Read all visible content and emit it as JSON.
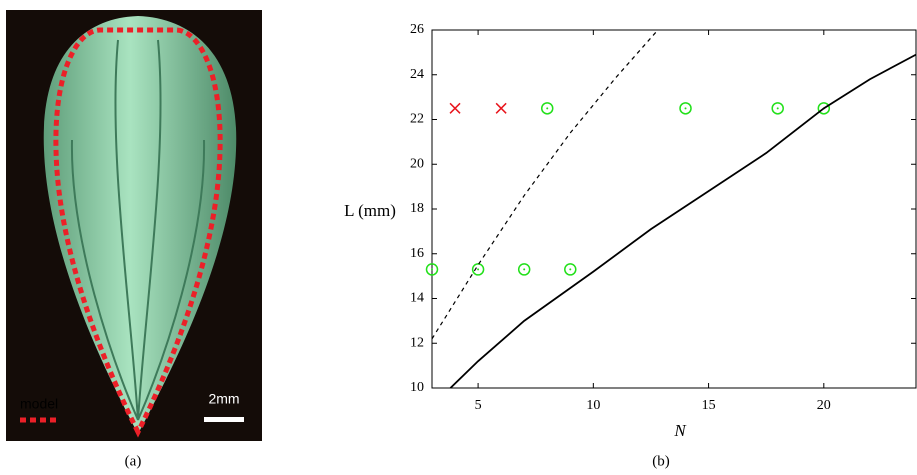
{
  "panel_a": {
    "legend_label": "model",
    "scale_label": "2mm",
    "caption": "(a)"
  },
  "chart_data": {
    "type": "scatter",
    "caption": "(b)",
    "xlabel": "N",
    "ylabel": "L (mm)",
    "xlim": [
      3,
      24
    ],
    "ylim": [
      10,
      26
    ],
    "xticks": [
      5,
      10,
      15,
      20
    ],
    "yticks": [
      10,
      12,
      14,
      16,
      18,
      20,
      22,
      24,
      26
    ],
    "series": [
      {
        "marker": "x",
        "color": "#e8141c",
        "x": [
          4,
          6
        ],
        "values": [
          22.5,
          22.5
        ]
      },
      {
        "marker": "circle",
        "color": "#22e01a",
        "x": [
          8,
          14,
          18,
          20,
          3,
          5,
          7,
          9
        ],
        "values": [
          22.5,
          22.5,
          22.5,
          22.5,
          15.3,
          15.3,
          15.3,
          15.3
        ]
      },
      {
        "marker": "line",
        "style": "solid",
        "color": "#000000",
        "x": [
          3.8,
          5,
          7,
          10,
          12.5,
          15,
          17.5,
          20,
          22,
          24
        ],
        "values": [
          10,
          11.2,
          13,
          15.2,
          17.1,
          18.8,
          20.5,
          22.5,
          23.8,
          24.9
        ]
      },
      {
        "marker": "line",
        "style": "dashed",
        "color": "#000000",
        "x": [
          3,
          5,
          7,
          9,
          11,
          12.8
        ],
        "values": [
          12.2,
          15.5,
          18.6,
          21.4,
          23.9,
          26
        ]
      }
    ]
  }
}
